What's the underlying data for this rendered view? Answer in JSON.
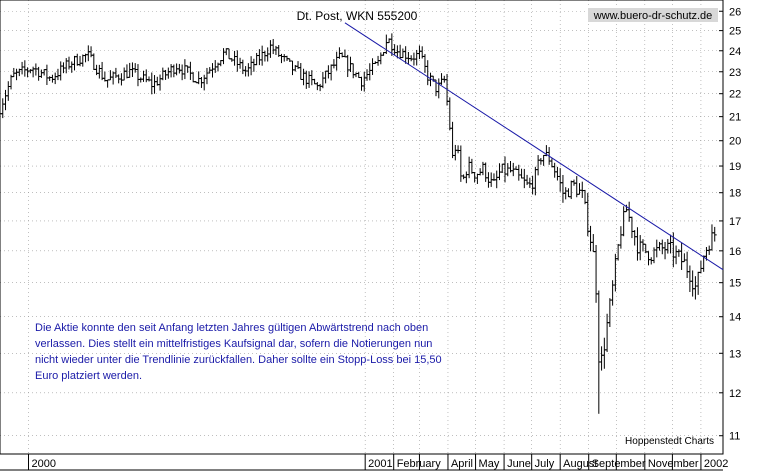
{
  "chart_data": {
    "type": "ohlc-bar",
    "title": "Dt. Post, WKN 555200",
    "watermark": "www.buero-dr-schutz.de",
    "source": "Hoppenstedt Charts",
    "ylim": [
      10.6,
      26.6
    ],
    "y_scale": "log",
    "y_ticks": [
      11,
      12,
      13,
      14,
      15,
      16,
      17,
      18,
      19,
      20,
      21,
      22,
      23,
      24,
      25,
      26
    ],
    "x_labels": [
      "2000",
      "2001",
      "February",
      "April",
      "May",
      "June",
      "July",
      "August",
      "September",
      "November",
      "2002"
    ],
    "xlim": [
      "1999-12-01",
      "2002-01-25"
    ],
    "x_ticks": [
      "2000-01-01",
      "2001-01-01",
      "2001-02-01",
      "2001-03-01",
      "2001-04-01",
      "2001-05-01",
      "2001-06-01",
      "2001-07-01",
      "2001-08-01",
      "2001-09-01",
      "2001-10-01",
      "2001-11-01",
      "2001-12-01",
      "2002-01-01"
    ],
    "x_tick_labels": {
      "2000-01-01": "2000",
      "2001-01-01": "2001",
      "2001-02-01": "February",
      "2001-04-01": "April",
      "2001-05-01": "May",
      "2001-06-01": "June",
      "2001-07-01": "July",
      "2001-08-01": "August",
      "2001-09-01": "September",
      "2001-11-01": "November",
      "2002-01-01": "2002"
    },
    "trendline": {
      "start": {
        "x": "2000-12-10",
        "y": 25.4
      },
      "end": {
        "x": "2002-01-25",
        "y": 15.4
      }
    },
    "series": [
      {
        "style": "ohlc",
        "color": "#000000",
        "points": [
          [
            "1999-12-01",
            21.4
          ],
          [
            "1999-12-15",
            22.8
          ],
          [
            "2000-01-05",
            23.2
          ],
          [
            "2000-01-25",
            22.7
          ],
          [
            "2000-02-15",
            23.4
          ],
          [
            "2000-03-05",
            23.8
          ],
          [
            "2000-03-25",
            22.6
          ],
          [
            "2000-04-20",
            23.0
          ],
          [
            "2000-05-15",
            22.4
          ],
          [
            "2000-06-10",
            23.3
          ],
          [
            "2000-07-05",
            22.6
          ],
          [
            "2000-08-01",
            23.9
          ],
          [
            "2000-08-25",
            23.0
          ],
          [
            "2000-09-20",
            24.2
          ],
          [
            "2000-10-15",
            23.1
          ],
          [
            "2000-11-10",
            22.3
          ],
          [
            "2000-12-05",
            23.7
          ],
          [
            "2000-12-28",
            22.6
          ],
          [
            "2001-01-15",
            23.4
          ],
          [
            "2001-01-25",
            24.6
          ],
          [
            "2001-02-05",
            24.0
          ],
          [
            "2001-02-20",
            23.7
          ],
          [
            "2001-03-01",
            23.8
          ],
          [
            "2001-03-10",
            22.8
          ],
          [
            "2001-03-20",
            22.2
          ],
          [
            "2001-03-28",
            22.6
          ],
          [
            "2001-04-02",
            21.0
          ],
          [
            "2001-04-06",
            19.3
          ],
          [
            "2001-04-10",
            19.9
          ],
          [
            "2001-04-16",
            18.3
          ],
          [
            "2001-04-22",
            19.0
          ],
          [
            "2001-05-01",
            18.7
          ],
          [
            "2001-05-10",
            18.9
          ],
          [
            "2001-05-20",
            18.2
          ],
          [
            "2001-05-28",
            18.8
          ],
          [
            "2001-06-08",
            18.8
          ],
          [
            "2001-06-18",
            18.5
          ],
          [
            "2001-06-28",
            18.2
          ],
          [
            "2001-07-05",
            18.6
          ],
          [
            "2001-07-12",
            19.5
          ],
          [
            "2001-07-20",
            19.3
          ],
          [
            "2001-07-28",
            18.7
          ],
          [
            "2001-08-05",
            17.9
          ],
          [
            "2001-08-15",
            18.3
          ],
          [
            "2001-08-25",
            17.9
          ],
          [
            "2001-09-03",
            16.4
          ],
          [
            "2001-09-08",
            15.5
          ],
          [
            "2001-09-12",
            13.0
          ],
          [
            "2001-09-15",
            12.8
          ],
          [
            "2001-09-20",
            13.6
          ],
          [
            "2001-09-26",
            14.6
          ],
          [
            "2001-10-01",
            15.7
          ],
          [
            "2001-10-06",
            16.7
          ],
          [
            "2001-10-12",
            17.4
          ],
          [
            "2001-10-18",
            16.8
          ],
          [
            "2001-10-25",
            16.1
          ],
          [
            "2001-11-01",
            16.0
          ],
          [
            "2001-11-08",
            15.9
          ],
          [
            "2001-11-15",
            16.0
          ],
          [
            "2001-11-22",
            16.1
          ],
          [
            "2001-11-30",
            16.0
          ],
          [
            "2001-12-07",
            15.8
          ],
          [
            "2001-12-14",
            15.6
          ],
          [
            "2001-12-20",
            15.3
          ],
          [
            "2001-12-27",
            14.8
          ],
          [
            "2002-01-03",
            15.8
          ],
          [
            "2002-01-10",
            16.3
          ],
          [
            "2002-01-17",
            16.6
          ]
        ]
      }
    ],
    "extremes": [
      {
        "x": "2001-09-12",
        "y": 11.5,
        "kind": "low"
      },
      {
        "x": "2001-01-25",
        "y": 24.8,
        "kind": "high"
      }
    ],
    "annotation": "Die Aktie konnte den seit Anfang letzten Jahres gültigen Abwärtstrend nach oben verlassen. Dies stellt ein mittelfristiges Kaufsignal dar, sofern die Notierungen nun nicht wieder unter die Trendlinie zurückfallen. Daher sollte ein Stopp-Loss bei 15,50 Euro platziert werden.",
    "colors": {
      "bars": "#000000",
      "trendline": "#1a1aa8",
      "annotation": "#1a1aa8",
      "grid": "#999999",
      "watermark_bg": "#d8d8d8"
    }
  }
}
